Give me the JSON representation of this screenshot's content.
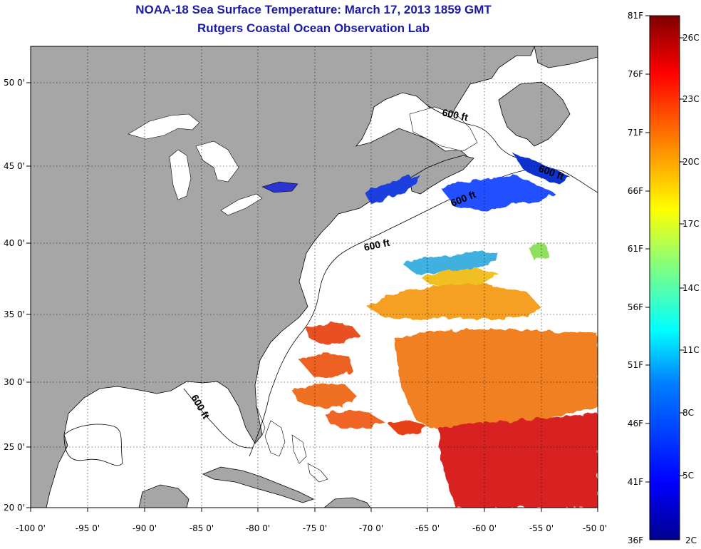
{
  "header": {
    "title": "NOAA-18 Sea Surface Temperature:  March 17, 2013 1859 GMT",
    "subtitle": "Rutgers Coastal Ocean Observation Lab"
  },
  "axes": {
    "lon_min": -100,
    "lon_max": -50,
    "lat_min": 20,
    "lat_max": 52.5,
    "lon_ticks": [
      "-100 0'",
      "-95 0'",
      "-90 0'",
      "-85 0'",
      "-80 0'",
      "-75 0'",
      "-70 0'",
      "-65 0'",
      "-60 0'",
      "-55 0'",
      "-50 0'"
    ],
    "lat_ticks": [
      "20 0'",
      "25 0'",
      "30 0'",
      "35 0'",
      "40 0'",
      "45 0'",
      "50 0'"
    ]
  },
  "contour_labels": [
    "600 ft",
    "600 ft",
    "600 ft",
    "600 ft",
    "600 ft"
  ],
  "colorbar": {
    "f_labels": [
      "81F",
      "76F",
      "71F",
      "66F",
      "61F",
      "56F",
      "51F",
      "46F",
      "41F",
      "36F"
    ],
    "c_labels": [
      "26C",
      "23C",
      "20C",
      "17C",
      "14C",
      "11C",
      "8C",
      "5C",
      "2C"
    ],
    "colors": [
      "#00008f",
      "#0000ff",
      "#0080ff",
      "#00ffff",
      "#80ff80",
      "#ffff00",
      "#ff8000",
      "#ff0000",
      "#800000"
    ]
  },
  "colors": {
    "land": "#a6a6a6",
    "ocean": "#ffffff",
    "title": "#1a1aa6"
  }
}
